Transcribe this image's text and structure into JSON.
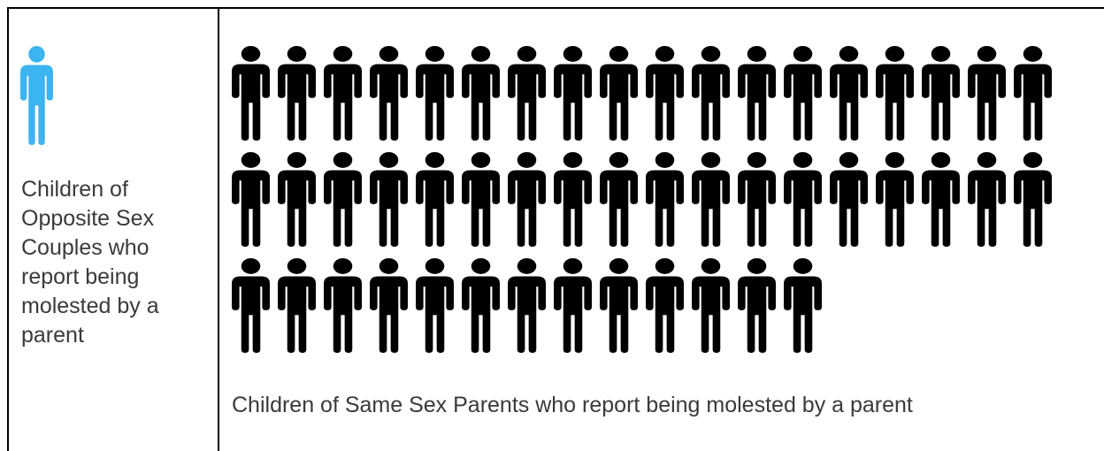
{
  "chart_data": {
    "type": "pictogram",
    "series": [
      {
        "label": "Children of Opposite Sex Couples who report being molested by a parent",
        "count": 1,
        "color": "#3cb4f0"
      },
      {
        "label": "Children of Same Sex Parents who report being molested by a parent",
        "count": 49,
        "color": "#000000"
      }
    ],
    "layout": {
      "per_row": 18
    }
  }
}
